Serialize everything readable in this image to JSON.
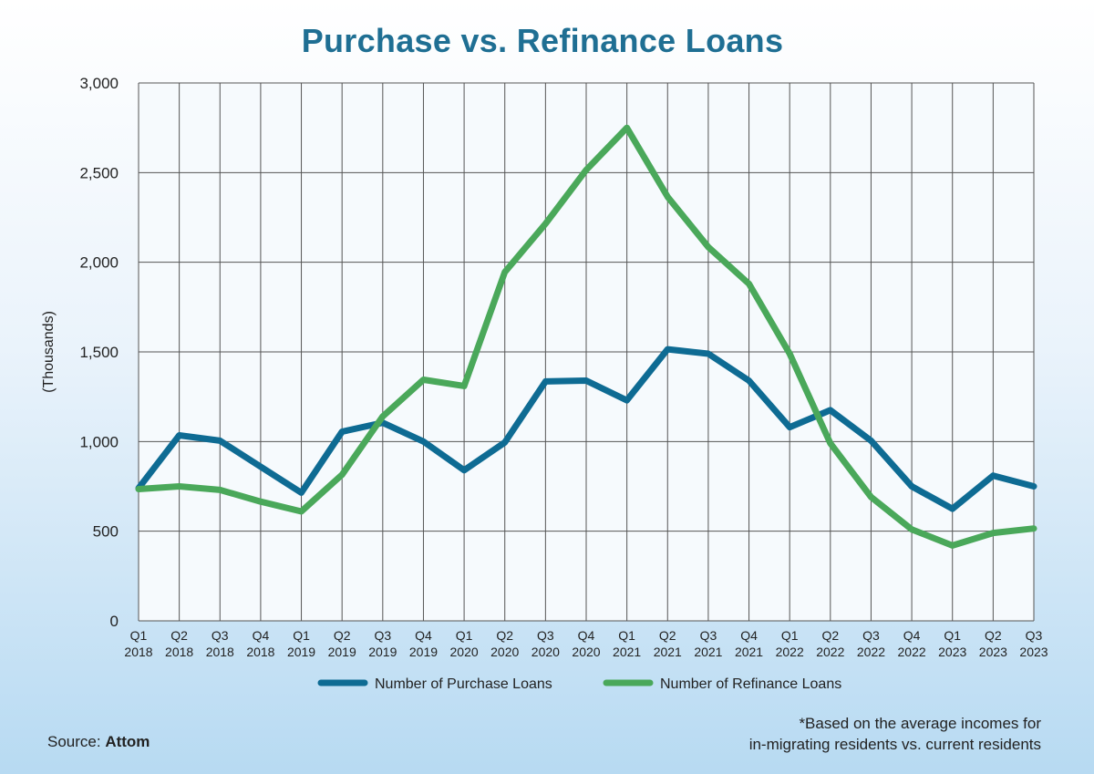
{
  "colors": {
    "title": "#1f6f93",
    "purchase": "#0e6b93",
    "refinance": "#4aa85a",
    "grid": "#555555",
    "plot_bg": "#f6fafd"
  },
  "source": {
    "prefix": "Source:",
    "name": "Attom"
  },
  "footnote": {
    "line1": "*Based on the average incomes for",
    "line2": "in-migrating residents vs. current residents"
  },
  "chart_data": {
    "type": "line",
    "title": "Purchase vs. Refinance Loans",
    "xlabel": "",
    "ylabel": "(Thousands)",
    "ylim": [
      0,
      3000
    ],
    "yticks": [
      0,
      500,
      1000,
      1500,
      2000,
      2500,
      3000
    ],
    "ytick_labels": [
      "0",
      "500",
      "1,000",
      "1,500",
      "2,000",
      "2,500",
      "3,000"
    ],
    "grid": true,
    "legend_position": "bottom",
    "categories": [
      [
        "Q1",
        "2018"
      ],
      [
        "Q2",
        "2018"
      ],
      [
        "Q3",
        "2018"
      ],
      [
        "Q4",
        "2018"
      ],
      [
        "Q1",
        "2019"
      ],
      [
        "Q2",
        "2019"
      ],
      [
        "Q3",
        "2019"
      ],
      [
        "Q4",
        "2019"
      ],
      [
        "Q1",
        "2020"
      ],
      [
        "Q2",
        "2020"
      ],
      [
        "Q3",
        "2020"
      ],
      [
        "Q4",
        "2020"
      ],
      [
        "Q1",
        "2021"
      ],
      [
        "Q2",
        "2021"
      ],
      [
        "Q3",
        "2021"
      ],
      [
        "Q4",
        "2021"
      ],
      [
        "Q1",
        "2022"
      ],
      [
        "Q2",
        "2022"
      ],
      [
        "Q3",
        "2022"
      ],
      [
        "Q4",
        "2022"
      ],
      [
        "Q1",
        "2023"
      ],
      [
        "Q2",
        "2023"
      ],
      [
        "Q3",
        "2023"
      ]
    ],
    "series": [
      {
        "name": "Number of Purchase Loans",
        "color": "#0e6b93",
        "values": [
          740,
          1035,
          1005,
          860,
          715,
          1055,
          1105,
          1000,
          840,
          995,
          1335,
          1340,
          1230,
          1515,
          1490,
          1340,
          1080,
          1175,
          1005,
          750,
          625,
          810,
          750
        ]
      },
      {
        "name": "Number of Refinance Loans",
        "color": "#4aa85a",
        "values": [
          735,
          750,
          730,
          665,
          610,
          815,
          1140,
          1345,
          1310,
          1945,
          2215,
          2515,
          2750,
          2365,
          2085,
          1880,
          1490,
          990,
          690,
          510,
          420,
          490,
          515
        ]
      }
    ]
  }
}
